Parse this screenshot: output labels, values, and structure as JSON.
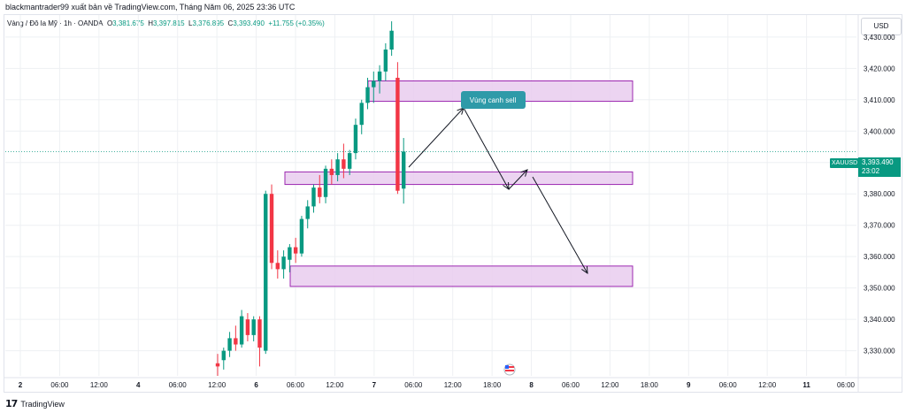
{
  "header": {
    "author_line": "blackmantrader99 xuất bản về TradingView.com, Tháng Năm 06, 2025 23:36 UTC"
  },
  "symbol": {
    "name": "Vàng / Đô la Mỹ · 1h · OANDA",
    "o_label": "O",
    "o_value": "3,381.675",
    "h_label": "H",
    "h_value": "3,397.815",
    "l_label": "L",
    "l_value": "3,376.895",
    "c_label": "C",
    "c_value": "3,393.490",
    "change": "+11.755 (+0.35%)"
  },
  "currency": "USD",
  "last_price": {
    "symbol": "XAUUSD",
    "price": "3,393.490",
    "countdown": "23:02"
  },
  "footer": {
    "brand": "TradingView"
  },
  "colors": {
    "up": "#089981",
    "down": "#f23645",
    "zone_fill": "#e9cdee",
    "zone_stroke": "#9c27b0",
    "callout_bg": "#2e9aa8",
    "grid": "#eef0f3",
    "text": "#131722"
  },
  "chart_data": {
    "type": "candlestick",
    "y_axis": {
      "ylim": [
        3322,
        3437
      ],
      "ticks": [
        "3,430.000",
        "3,420.000",
        "3,410.000",
        "3,400.000",
        "3,390.000",
        "3,380.000",
        "3,370.000",
        "3,360.000",
        "3,350.000",
        "3,340.000",
        "3,330.000"
      ],
      "tick_values": [
        3430,
        3420,
        3410,
        3400,
        3390,
        3380,
        3370,
        3360,
        3350,
        3340,
        3330
      ]
    },
    "x_axis": {
      "labels": [
        "2",
        "06:00",
        "12:00",
        "4",
        "06:00",
        "12:00",
        "6",
        "06:00",
        "12:00",
        "7",
        "06:00",
        "12:00",
        "18:00",
        "8",
        "06:00",
        "12:00",
        "18:00",
        "9",
        "06:00",
        "12:00",
        "11",
        "06:00"
      ],
      "bold": [
        true,
        false,
        false,
        true,
        false,
        false,
        true,
        false,
        false,
        true,
        false,
        false,
        false,
        true,
        false,
        false,
        false,
        true,
        false,
        false,
        true,
        false
      ]
    },
    "last_price": 3393.49,
    "candles": [
      {
        "o": 3326,
        "h": 3329,
        "l": 3322,
        "c": 3325
      },
      {
        "o": 3327,
        "h": 3331,
        "l": 3324,
        "c": 3330
      },
      {
        "o": 3330,
        "h": 3336,
        "l": 3328,
        "c": 3334
      },
      {
        "o": 3334,
        "h": 3338,
        "l": 3330,
        "c": 3332
      },
      {
        "o": 3332,
        "h": 3343,
        "l": 3331,
        "c": 3341
      },
      {
        "o": 3340,
        "h": 3342,
        "l": 3333,
        "c": 3335
      },
      {
        "o": 3335,
        "h": 3341,
        "l": 3333,
        "c": 3340
      },
      {
        "o": 3340,
        "h": 3341,
        "l": 3325,
        "c": 3331
      },
      {
        "o": 3330,
        "h": 3381,
        "l": 3329,
        "c": 3380
      },
      {
        "o": 3380,
        "h": 3383,
        "l": 3356,
        "c": 3358
      },
      {
        "o": 3358,
        "h": 3362,
        "l": 3353,
        "c": 3356
      },
      {
        "o": 3356,
        "h": 3362,
        "l": 3353,
        "c": 3360
      },
      {
        "o": 3359,
        "h": 3364,
        "l": 3355,
        "c": 3363
      },
      {
        "o": 3363,
        "h": 3366,
        "l": 3358,
        "c": 3361
      },
      {
        "o": 3361,
        "h": 3373,
        "l": 3360,
        "c": 3372
      },
      {
        "o": 3372,
        "h": 3378,
        "l": 3369,
        "c": 3376
      },
      {
        "o": 3376,
        "h": 3383,
        "l": 3374,
        "c": 3382
      },
      {
        "o": 3382,
        "h": 3386,
        "l": 3377,
        "c": 3379
      },
      {
        "o": 3379,
        "h": 3389,
        "l": 3377,
        "c": 3388
      },
      {
        "o": 3388,
        "h": 3391,
        "l": 3383,
        "c": 3386
      },
      {
        "o": 3386,
        "h": 3393,
        "l": 3384,
        "c": 3391
      },
      {
        "o": 3391,
        "h": 3396,
        "l": 3385,
        "c": 3388
      },
      {
        "o": 3388,
        "h": 3394,
        "l": 3386,
        "c": 3393
      },
      {
        "o": 3393,
        "h": 3404,
        "l": 3391,
        "c": 3402
      },
      {
        "o": 3402,
        "h": 3410,
        "l": 3399,
        "c": 3409
      },
      {
        "o": 3409,
        "h": 3417,
        "l": 3407,
        "c": 3414
      },
      {
        "o": 3414,
        "h": 3419,
        "l": 3409,
        "c": 3416
      },
      {
        "o": 3416,
        "h": 3421,
        "l": 3412,
        "c": 3419
      },
      {
        "o": 3419,
        "h": 3428,
        "l": 3416,
        "c": 3426
      },
      {
        "o": 3426,
        "h": 3435,
        "l": 3424,
        "c": 3432
      },
      {
        "o": 3417,
        "h": 3422,
        "l": 3380,
        "c": 3381
      },
      {
        "o": 3381.675,
        "h": 3397.815,
        "l": 3376.895,
        "c": 3393.49
      }
    ],
    "zones": [
      {
        "top": 3416,
        "bottom": 3409.5
      },
      {
        "top": 3387,
        "bottom": 3383
      },
      {
        "top": 3357,
        "bottom": 3350.5
      }
    ],
    "annotation": {
      "text": "Vùng canh sell"
    }
  }
}
